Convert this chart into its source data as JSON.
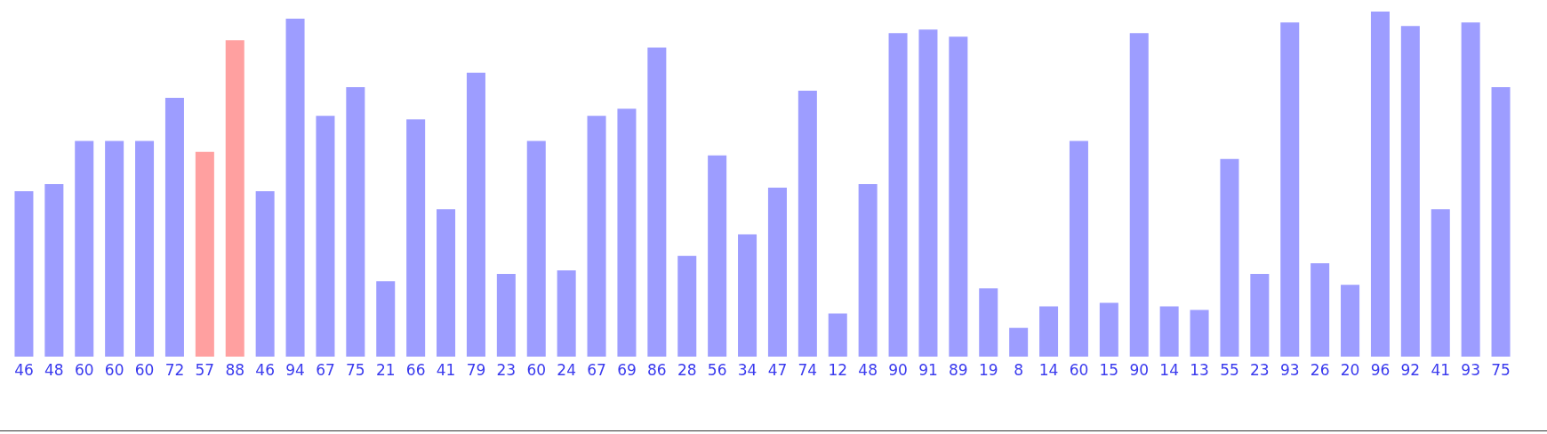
{
  "chart_data": {
    "type": "bar",
    "categories": [
      null,
      null,
      null,
      null,
      null,
      null,
      null,
      null,
      null,
      null,
      null,
      null,
      null,
      null,
      null,
      null,
      null,
      null,
      null,
      null,
      null,
      null,
      null,
      null,
      null,
      null,
      null,
      null,
      null,
      null,
      null,
      null,
      null,
      null,
      null,
      null,
      null,
      null,
      null,
      null,
      null,
      null,
      null,
      null,
      null,
      null,
      null,
      null,
      null,
      null
    ],
    "values": [
      46,
      48,
      60,
      60,
      60,
      72,
      57,
      88,
      46,
      94,
      67,
      75,
      21,
      66,
      41,
      79,
      23,
      60,
      24,
      67,
      69,
      86,
      28,
      56,
      34,
      47,
      74,
      12,
      48,
      90,
      91,
      89,
      19,
      8,
      14,
      60,
      15,
      90,
      14,
      13,
      55,
      23,
      93,
      26,
      20,
      96,
      92,
      41,
      93,
      75
    ],
    "colors": [
      "#9d9dff",
      "#9d9dff",
      "#9d9dff",
      "#9d9dff",
      "#9d9dff",
      "#9d9dff",
      "#ffa0a0",
      "#ffa0a0",
      "#9d9dff",
      "#9d9dff",
      "#9d9dff",
      "#9d9dff",
      "#9d9dff",
      "#9d9dff",
      "#9d9dff",
      "#9d9dff",
      "#9d9dff",
      "#9d9dff",
      "#9d9dff",
      "#9d9dff",
      "#9d9dff",
      "#9d9dff",
      "#9d9dff",
      "#9d9dff",
      "#9d9dff",
      "#9d9dff",
      "#9d9dff",
      "#9d9dff",
      "#9d9dff",
      "#9d9dff",
      "#9d9dff",
      "#9d9dff",
      "#9d9dff",
      "#9d9dff",
      "#9d9dff",
      "#9d9dff",
      "#9d9dff",
      "#9d9dff",
      "#9d9dff",
      "#9d9dff",
      "#9d9dff",
      "#9d9dff",
      "#9d9dff",
      "#9d9dff",
      "#9d9dff",
      "#9d9dff",
      "#9d9dff",
      "#9d9dff",
      "#9d9dff",
      "#9d9dff"
    ],
    "ylim": [
      0,
      96
    ],
    "tick_labels": false,
    "grid": false,
    "legend": false,
    "data_labels": true
  }
}
